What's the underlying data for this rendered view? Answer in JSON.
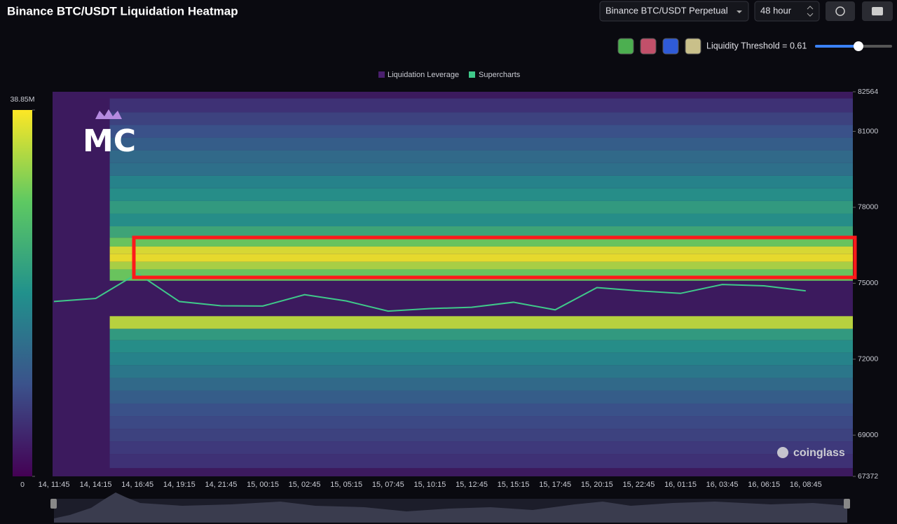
{
  "header": {
    "title": "Binance BTC/USDT Liquidation Heatmap",
    "pair_select": "Binance BTC/USDT Perpetual",
    "range_select": "48 hour",
    "threshold_label": "Liquidity Threshold = 0.61"
  },
  "chart_data": {
    "type": "heatmap",
    "watermark": "MC",
    "brand": "coinglass",
    "x": [
      "14, 11:45",
      "14, 14:15",
      "14, 16:45",
      "14, 19:15",
      "14, 21:45",
      "15, 00:15",
      "15, 02:45",
      "15, 05:15",
      "15, 07:45",
      "15, 10:15",
      "15, 12:45",
      "15, 15:15",
      "15, 17:45",
      "15, 20:15",
      "15, 22:45",
      "16, 01:15",
      "16, 03:45",
      "16, 06:15",
      "16, 08:45"
    ],
    "ylim": [
      67372,
      82564
    ],
    "yticks": [
      67372,
      69000,
      72000,
      75000,
      78000,
      81000,
      82564
    ],
    "zlim": [
      0,
      38850000
    ],
    "zticks": [
      0,
      {
        "value": 38850000,
        "label": "38.85M"
      }
    ],
    "heatmap": {
      "name": "Liquidation Leverage",
      "color": "#4a1f6e",
      "levels": [
        82000,
        81500,
        81000,
        80500,
        80000,
        79500,
        79000,
        78500,
        78000,
        77500,
        77000,
        76600,
        76300,
        76000,
        75700,
        75400,
        73400,
        73000,
        72500,
        72000,
        71500,
        71000,
        70500,
        70000,
        69500,
        69000,
        68500,
        68000
      ],
      "values": [
        6000000,
        8000000,
        10000000,
        12000000,
        14000000,
        15000000,
        18000000,
        20000000,
        22000000,
        20000000,
        24000000,
        30000000,
        37000000,
        38000000,
        34000000,
        30000000,
        35000000,
        22000000,
        20000000,
        18000000,
        16000000,
        14000000,
        12000000,
        10000000,
        9000000,
        8000000,
        7000000,
        6000000
      ]
    },
    "series": [
      {
        "name": "Supercharts",
        "color": "#3fc98a",
        "values": [
          74280,
          74400,
          75390,
          74280,
          74110,
          74100,
          74550,
          74300,
          73900,
          74000,
          74050,
          74250,
          73950,
          74830,
          74700,
          74600,
          74950,
          74900,
          74700
        ]
      }
    ]
  }
}
